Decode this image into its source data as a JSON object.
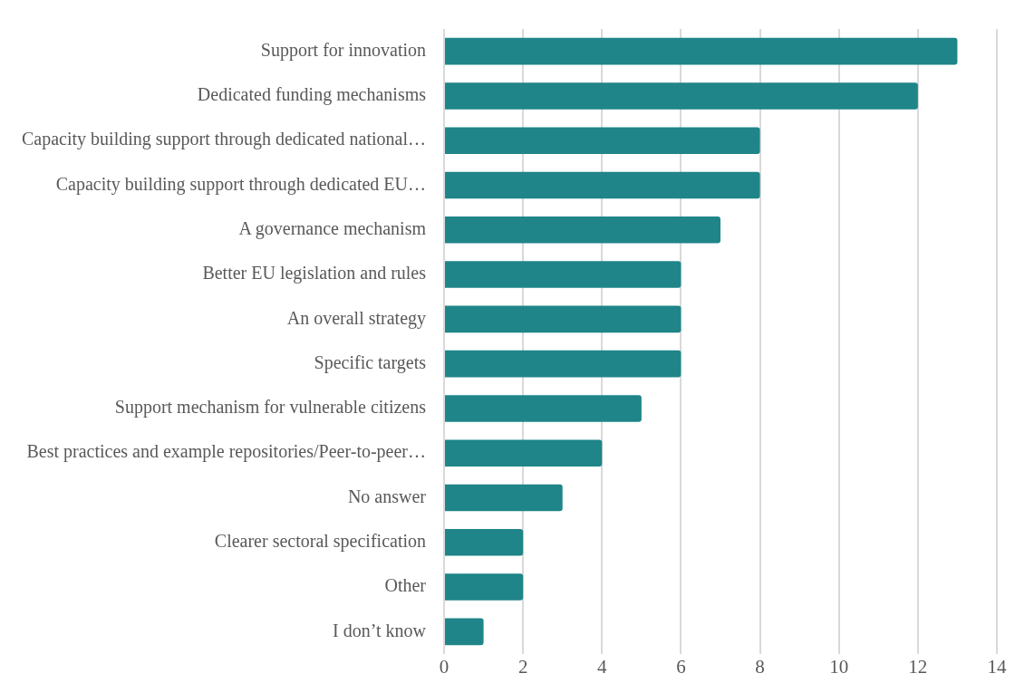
{
  "chart_data": {
    "type": "bar",
    "orientation": "horizontal",
    "categories": [
      "Support for innovation",
      "Dedicated funding mechanisms",
      "Capacity building support through dedicated national…",
      "Capacity building support through dedicated EU…",
      "A governance mechanism",
      "Better EU legislation and rules",
      "An overall strategy",
      "Specific targets",
      "Support mechanism for vulnerable citizens",
      "Best practices and example repositories/Peer-to-peer…",
      "No answer",
      "Clearer sectoral specification",
      "Other",
      "I don’t know"
    ],
    "values": [
      13,
      12,
      8,
      8,
      7,
      6,
      6,
      6,
      5,
      4,
      3,
      2,
      2,
      1
    ],
    "color": "#1f8589",
    "xlim": [
      0,
      14
    ],
    "xticks": [
      0,
      2,
      4,
      6,
      8,
      10,
      12,
      14
    ],
    "grid": "x",
    "legend": false
  }
}
